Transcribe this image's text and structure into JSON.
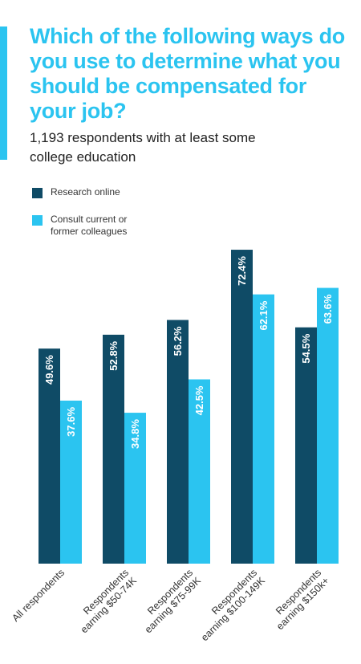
{
  "title": "Which of the following ways do you use to determine what you should be compensated for your job?",
  "subtitle": "1,193 respondents with at least some college education",
  "colors": {
    "accent": "#2bc4f0",
    "research": "#0f4b66",
    "colleagues": "#2bc4f0"
  },
  "chart_data": {
    "type": "bar",
    "categories": [
      [
        "All respondents"
      ],
      [
        "Respondents",
        "earning $50-74K"
      ],
      [
        "Respondents",
        "earning $75-99K"
      ],
      [
        "Respondents",
        "earning $100-149K"
      ],
      [
        "Respondents",
        "earning $150k+"
      ]
    ],
    "series": [
      {
        "name": "Research online",
        "values": [
          49.6,
          52.8,
          56.2,
          72.4,
          54.5
        ],
        "labels": [
          "49.6%",
          "52.8%",
          "56.2%",
          "72.4%",
          "54.5%"
        ]
      },
      {
        "name": "Consult current or former colleagues",
        "values": [
          37.6,
          34.8,
          42.5,
          62.1,
          63.6
        ],
        "labels": [
          "37.6%",
          "34.8%",
          "42.5%",
          "62.1%",
          "63.6%"
        ]
      }
    ],
    "ylim": [
      0,
      100
    ],
    "grid": false,
    "legend": "top-left"
  }
}
